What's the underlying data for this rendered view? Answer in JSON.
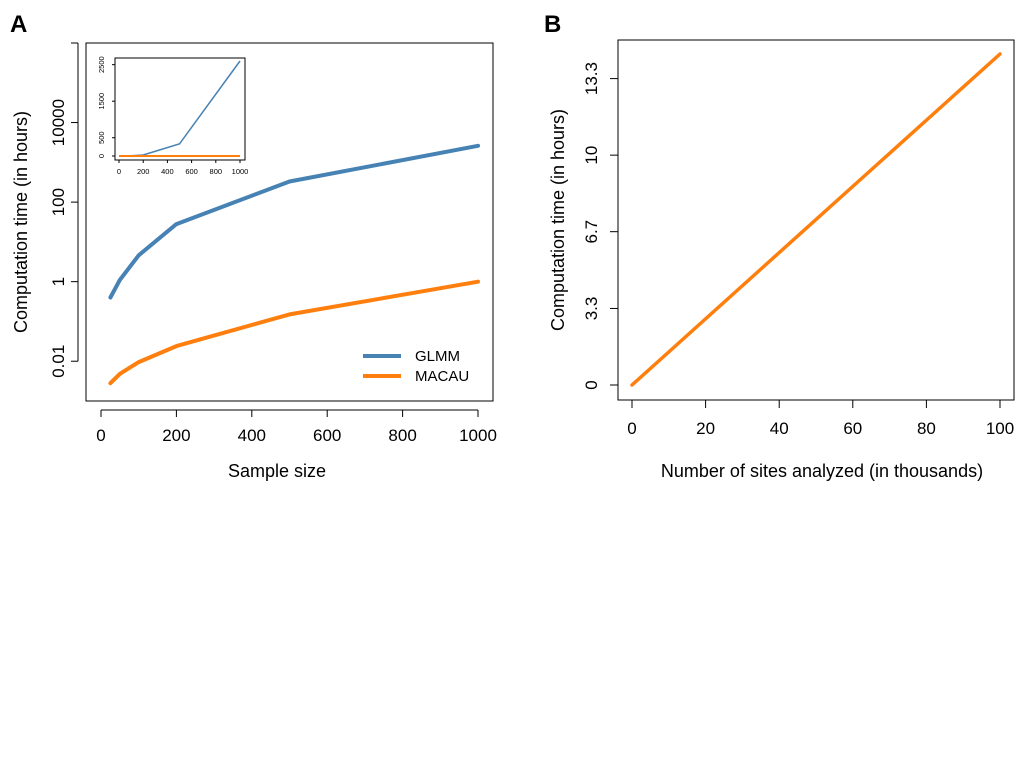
{
  "panels": {
    "a": {
      "letter": "A"
    },
    "b": {
      "letter": "B"
    }
  },
  "colors": {
    "glmm": "#4682b4",
    "macau": "#ff7f0e"
  },
  "chart_data": [
    {
      "id": "A",
      "type": "line",
      "xlabel": "Sample size",
      "ylabel": "Computation time (in hours)",
      "y_scale": "log10",
      "xlim": [
        0,
        1000
      ],
      "ylim": [
        0.001,
        1000000
      ],
      "x_ticks": [
        0,
        200,
        400,
        600,
        800,
        1000
      ],
      "x_tick_labels": [
        "0",
        "200",
        "400",
        "600",
        "800",
        "1000"
      ],
      "y_ticks": [
        0.01,
        1,
        100,
        10000,
        1000000
      ],
      "y_tick_labels": [
        "0.01",
        "1",
        "100",
        "10000",
        ""
      ],
      "legend": {
        "position": "bottom-right",
        "entries": [
          "GLMM",
          "MACAU"
        ]
      },
      "series": [
        {
          "name": "GLMM",
          "color": "#4682b4",
          "x": [
            25,
            50,
            100,
            200,
            500,
            1000
          ],
          "y": [
            0.4,
            1.1,
            4.6,
            28,
            330,
            2600
          ]
        },
        {
          "name": "MACAU",
          "color": "#ff7f0e",
          "x": [
            25,
            50,
            100,
            200,
            500,
            1000
          ],
          "y": [
            0.0028,
            0.0048,
            0.0095,
            0.024,
            0.15,
            1
          ]
        }
      ],
      "inset": {
        "type": "line",
        "xlim": [
          0,
          1000
        ],
        "ylim": [
          0,
          2600
        ],
        "x_ticks": [
          0,
          200,
          400,
          600,
          800,
          1000
        ],
        "x_tick_labels": [
          "0",
          "200",
          "400",
          "600",
          "800",
          "1000"
        ],
        "y_ticks": [
          0,
          500,
          1500,
          2500
        ],
        "y_tick_labels": [
          "0",
          "500",
          "1500",
          "2500"
        ]
      }
    },
    {
      "id": "B",
      "type": "line",
      "xlabel": "Number of sites analyzed (in thousands)",
      "ylabel": "Computation time (in hours)",
      "xlim": [
        0,
        100
      ],
      "ylim": [
        0,
        14.4
      ],
      "x_ticks": [
        0,
        20,
        40,
        60,
        80,
        100
      ],
      "x_tick_labels": [
        "0",
        "20",
        "40",
        "60",
        "80",
        "100"
      ],
      "y_ticks": [
        0,
        3.33,
        6.67,
        10,
        13.33
      ],
      "y_tick_labels": [
        "0",
        "3.3",
        "6.7",
        "10",
        "13.3"
      ],
      "series": [
        {
          "name": "MACAU",
          "color": "#ff7f0e",
          "x": [
            0,
            100
          ],
          "y": [
            0,
            14.4
          ]
        }
      ]
    }
  ]
}
